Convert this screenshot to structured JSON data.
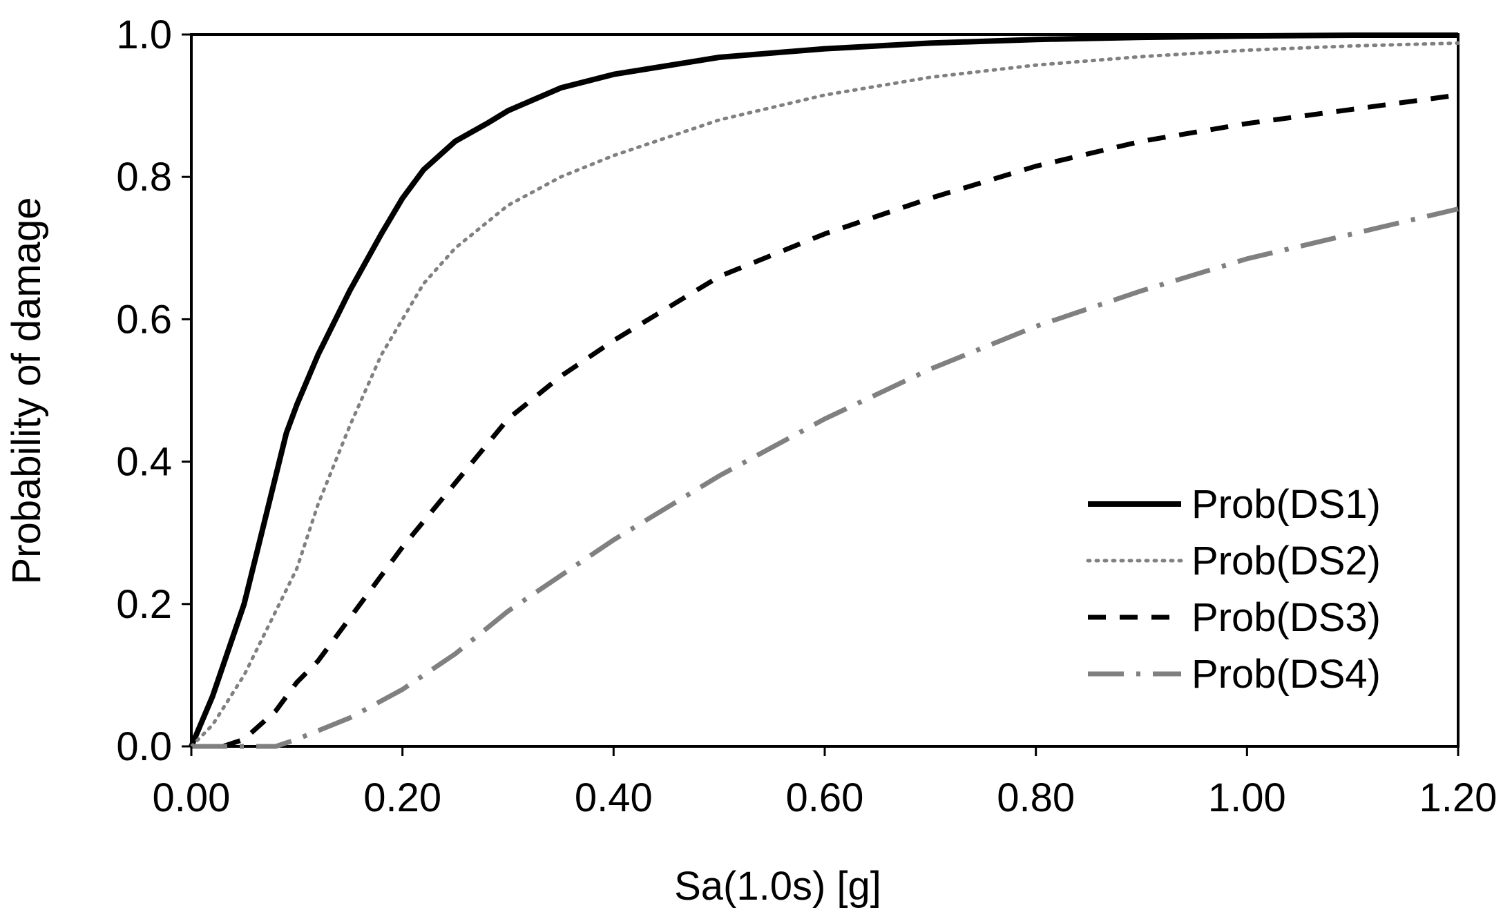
{
  "chart_data": {
    "type": "line",
    "title": "",
    "xlabel": "Sa(1.0s) [g]",
    "ylabel": "Probability of damage",
    "xlim": [
      0,
      1.2
    ],
    "ylim": [
      0,
      1.0
    ],
    "xticks": [
      0,
      0.2,
      0.4,
      0.6,
      0.8,
      1.0,
      1.2
    ],
    "xtick_labels": [
      "0.00",
      "0.20",
      "0.40",
      "0.60",
      "0.80",
      "1.00",
      "1.20"
    ],
    "yticks": [
      0,
      0.2,
      0.4,
      0.6,
      0.8,
      1.0
    ],
    "ytick_labels": [
      "0.0",
      "0.2",
      "0.4",
      "0.6",
      "0.8",
      "1.0"
    ],
    "grid": false,
    "legend_position": "bottom-right",
    "series": [
      {
        "name": "Prob(DS1)",
        "style": "solid",
        "color": "#000000",
        "x": [
          0.0,
          0.02,
          0.05,
          0.07,
          0.09,
          0.1,
          0.12,
          0.15,
          0.18,
          0.2,
          0.22,
          0.25,
          0.28,
          0.3,
          0.35,
          0.4,
          0.5,
          0.6,
          0.7,
          0.8,
          0.9,
          1.0,
          1.1,
          1.2
        ],
        "y": [
          0.0,
          0.07,
          0.2,
          0.32,
          0.44,
          0.48,
          0.55,
          0.64,
          0.72,
          0.77,
          0.81,
          0.85,
          0.875,
          0.893,
          0.925,
          0.944,
          0.968,
          0.98,
          0.988,
          0.993,
          0.996,
          0.998,
          0.999,
          0.999
        ]
      },
      {
        "name": "Prob(DS2)",
        "style": "dotted",
        "color": "#808080",
        "x": [
          0.0,
          0.02,
          0.05,
          0.08,
          0.1,
          0.12,
          0.15,
          0.18,
          0.2,
          0.22,
          0.25,
          0.3,
          0.35,
          0.4,
          0.5,
          0.6,
          0.7,
          0.8,
          0.9,
          1.0,
          1.1,
          1.2
        ],
        "y": [
          0.0,
          0.03,
          0.1,
          0.19,
          0.25,
          0.34,
          0.45,
          0.55,
          0.6,
          0.65,
          0.7,
          0.76,
          0.8,
          0.83,
          0.88,
          0.915,
          0.94,
          0.957,
          0.969,
          0.978,
          0.984,
          0.988
        ]
      },
      {
        "name": "Prob(DS3)",
        "style": "dashed",
        "color": "#000000",
        "x": [
          0.0,
          0.03,
          0.05,
          0.08,
          0.1,
          0.12,
          0.15,
          0.18,
          0.2,
          0.25,
          0.3,
          0.35,
          0.4,
          0.5,
          0.6,
          0.7,
          0.8,
          0.9,
          1.0,
          1.1,
          1.2
        ],
        "y": [
          0.0,
          0.0,
          0.01,
          0.05,
          0.09,
          0.12,
          0.18,
          0.24,
          0.28,
          0.37,
          0.46,
          0.52,
          0.57,
          0.66,
          0.72,
          0.77,
          0.815,
          0.85,
          0.875,
          0.895,
          0.915
        ]
      },
      {
        "name": "Prob(DS4)",
        "style": "dashdot",
        "color": "#808080",
        "x": [
          0.0,
          0.05,
          0.08,
          0.1,
          0.15,
          0.2,
          0.25,
          0.3,
          0.4,
          0.5,
          0.6,
          0.7,
          0.8,
          0.9,
          1.0,
          1.1,
          1.2
        ],
        "y": [
          0.0,
          0.0,
          0.0,
          0.01,
          0.04,
          0.08,
          0.13,
          0.19,
          0.29,
          0.38,
          0.46,
          0.53,
          0.59,
          0.64,
          0.685,
          0.72,
          0.755
        ]
      }
    ]
  }
}
